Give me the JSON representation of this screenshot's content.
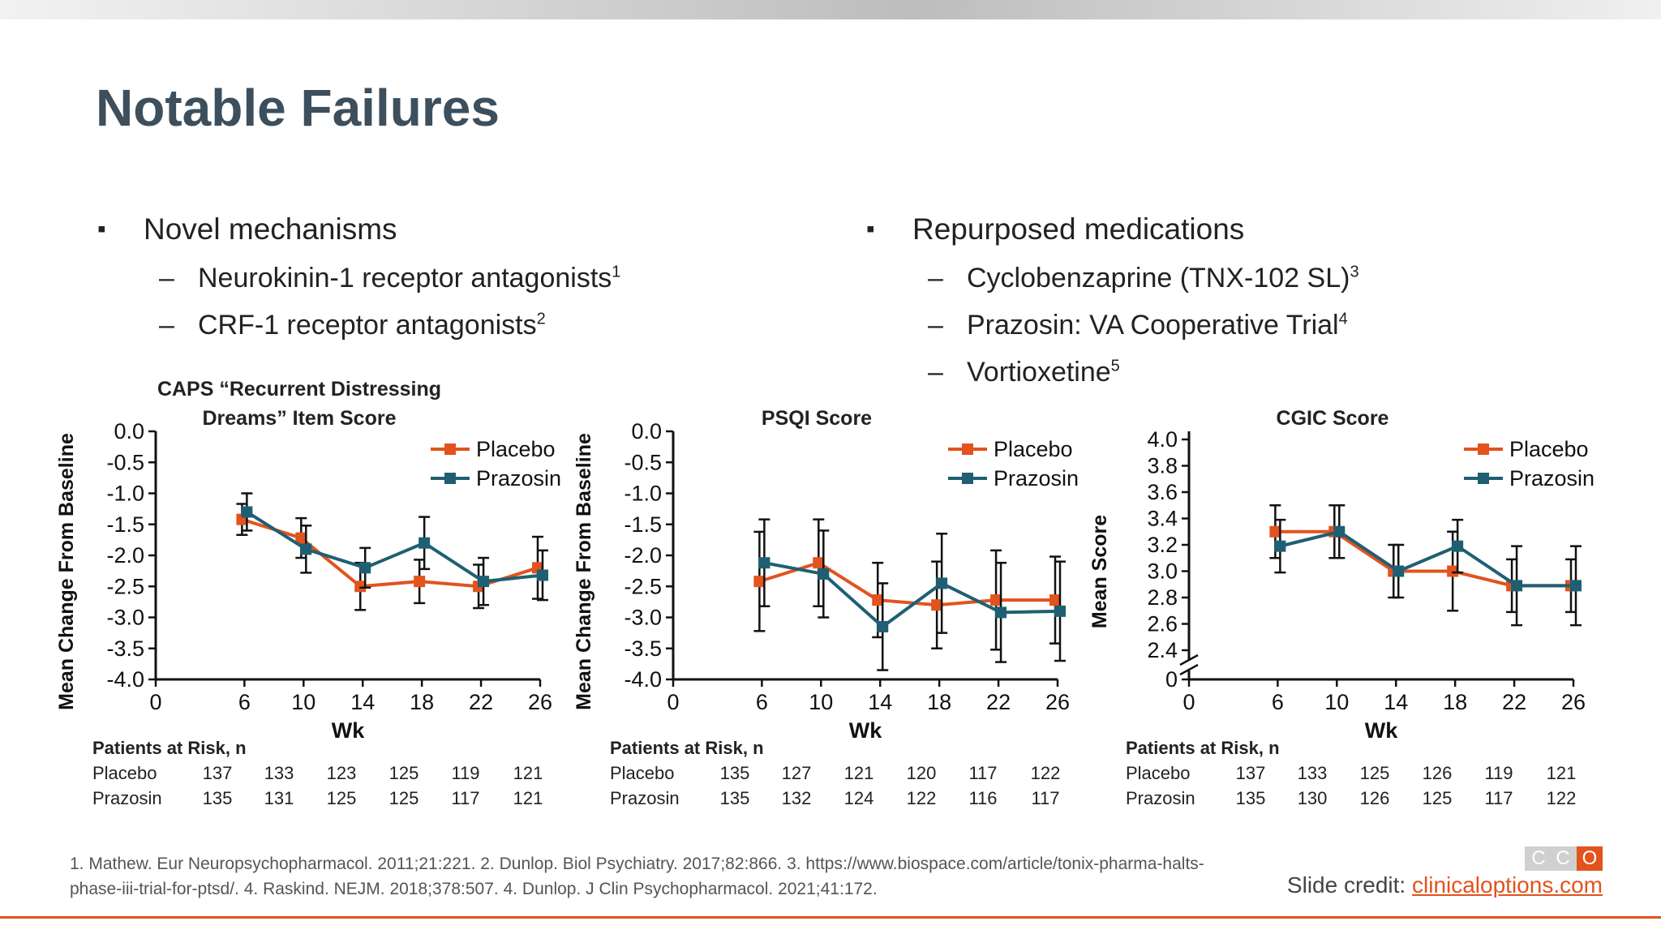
{
  "slide": {
    "title": "Notable Failures",
    "left_bullet": "Novel mechanisms",
    "left_subs": [
      {
        "text": "Neurokinin-1 receptor antagonists",
        "sup": "1"
      },
      {
        "text": "CRF-1 receptor antagonists",
        "sup": "2"
      }
    ],
    "right_bullet": "Repurposed medications",
    "right_subs": [
      {
        "text": "Cyclobenzaprine (TNX-102 SL)",
        "sup": "3"
      },
      {
        "text": "Prazosin: VA Cooperative Trial",
        "sup": "4"
      },
      {
        "text": "Vortioxetine",
        "sup": "5"
      }
    ],
    "dash": "–",
    "footer": "1. Mathew. Eur Neuropsychopharmacol. 2011;21:221. 2. Dunlop. Biol Psychiatry. 2017;82:866. 3. https://www.biospace.com/article/tonix-pharma-halts-phase-iii-trial-for-ptsd/. 4. Raskind. NEJM. 2018;378:507. 4. Dunlop. J Clin Psychopharmacol. 2021;41:172.",
    "credit_prefix": "Slide credit: ",
    "credit_link": "clinicaloptions.com",
    "logo_letters": [
      "C",
      "C",
      "O"
    ]
  },
  "colors": {
    "placebo": "#e2531e",
    "prazosin": "#1f5f73",
    "title": "#3d4f5c",
    "accent": "#e2531e"
  },
  "chart_data": [
    {
      "type": "line",
      "title_lines": [
        "CAPS “Recurrent Distressing",
        "Dreams” Item Score"
      ],
      "xlabel": "Wk",
      "ylabel": "Mean Change From Baseline",
      "x": [
        0,
        6,
        10,
        14,
        18,
        22,
        26
      ],
      "xlim": [
        0,
        26
      ],
      "ylim": [
        -4.0,
        0.0
      ],
      "yticks": [
        0.0,
        -0.5,
        -1.0,
        -1.5,
        -2.0,
        -2.5,
        -3.0,
        -3.5,
        -4.0
      ],
      "ytick_labels": [
        "0.0",
        "-0.5",
        "-1.0",
        "-1.5",
        "-2.0",
        "-2.5",
        "-3.0",
        "-3.5",
        "-4.0"
      ],
      "axis_break": false,
      "series": [
        {
          "name": "Placebo",
          "x": [
            6,
            10,
            14,
            18,
            22,
            26
          ],
          "values": [
            -1.42,
            -1.72,
            -2.5,
            -2.42,
            -2.5,
            -2.2
          ],
          "err": [
            0.25,
            0.32,
            0.38,
            0.35,
            0.35,
            0.5
          ]
        },
        {
          "name": "Prazosin",
          "x": [
            6,
            10,
            14,
            18,
            22,
            26
          ],
          "values": [
            -1.3,
            -1.9,
            -2.2,
            -1.8,
            -2.42,
            -2.32
          ],
          "err": [
            0.3,
            0.38,
            0.32,
            0.42,
            0.38,
            0.4
          ]
        }
      ],
      "risk_header": "Patients at Risk, n",
      "risk": [
        {
          "label": "Placebo",
          "values": [
            "137",
            "133",
            "123",
            "125",
            "119",
            "121"
          ]
        },
        {
          "label": "Prazosin",
          "values": [
            "135",
            "131",
            "125",
            "125",
            "117",
            "121"
          ]
        }
      ]
    },
    {
      "type": "line",
      "title_lines": [
        "PSQI Score"
      ],
      "xlabel": "Wk",
      "ylabel": "Mean Change From Baseline",
      "x": [
        0,
        6,
        10,
        14,
        18,
        22,
        26
      ],
      "xlim": [
        0,
        26
      ],
      "ylim": [
        -4.0,
        0.0
      ],
      "yticks": [
        0.0,
        -0.5,
        -1.0,
        -1.5,
        -2.0,
        -2.5,
        -3.0,
        -3.5,
        -4.0
      ],
      "ytick_labels": [
        "0.0",
        "-0.5",
        "-1.0",
        "-1.5",
        "-2.0",
        "-2.5",
        "-3.0",
        "-3.5",
        "-4.0"
      ],
      "axis_break": false,
      "series": [
        {
          "name": "Placebo",
          "x": [
            6,
            10,
            14,
            18,
            22,
            26
          ],
          "values": [
            -2.42,
            -2.12,
            -2.72,
            -2.8,
            -2.72,
            -2.72
          ],
          "err": [
            0.8,
            0.7,
            0.6,
            0.7,
            0.8,
            0.7
          ]
        },
        {
          "name": "Prazosin",
          "x": [
            6,
            10,
            14,
            18,
            22,
            26
          ],
          "values": [
            -2.12,
            -2.3,
            -3.15,
            -2.45,
            -2.92,
            -2.9
          ],
          "err": [
            0.7,
            0.7,
            0.7,
            0.8,
            0.8,
            0.8
          ]
        }
      ],
      "risk_header": "Patients at Risk, n",
      "risk": [
        {
          "label": "Placebo",
          "values": [
            "135",
            "127",
            "121",
            "120",
            "117",
            "122"
          ]
        },
        {
          "label": "Prazosin",
          "values": [
            "135",
            "132",
            "124",
            "122",
            "116",
            "117"
          ]
        }
      ]
    },
    {
      "type": "line",
      "title_lines": [
        "CGIC Score"
      ],
      "xlabel": "Wk",
      "ylabel": "Mean Score",
      "x": [
        0,
        6,
        10,
        14,
        18,
        22,
        26
      ],
      "xlim": [
        0,
        26
      ],
      "ylim": [
        2.4,
        4.0
      ],
      "yticks": [
        4.0,
        3.8,
        3.6,
        3.4,
        3.2,
        3.0,
        2.8,
        2.6,
        2.4
      ],
      "ytick_labels": [
        "4.0",
        "3.8",
        "3.6",
        "3.4",
        "3.2",
        "3.0",
        "2.8",
        "2.6",
        "2.4"
      ],
      "axis_break": true,
      "break_label": "0",
      "series": [
        {
          "name": "Placebo",
          "x": [
            6,
            10,
            14,
            18,
            22,
            26
          ],
          "values": [
            3.3,
            3.3,
            3.0,
            3.0,
            2.89,
            2.89
          ],
          "err": [
            0.2,
            0.2,
            0.2,
            0.3,
            0.2,
            0.2
          ]
        },
        {
          "name": "Prazosin",
          "x": [
            6,
            10,
            14,
            18,
            22,
            26
          ],
          "values": [
            3.19,
            3.3,
            3.0,
            3.19,
            2.89,
            2.89
          ],
          "err": [
            0.2,
            0.2,
            0.2,
            0.2,
            0.3,
            0.3
          ]
        }
      ],
      "risk_header": "Patients at Risk, n",
      "risk": [
        {
          "label": "Placebo",
          "values": [
            "137",
            "133",
            "125",
            "126",
            "119",
            "121"
          ]
        },
        {
          "label": "Prazosin",
          "values": [
            "135",
            "130",
            "126",
            "125",
            "117",
            "122"
          ]
        }
      ]
    }
  ]
}
